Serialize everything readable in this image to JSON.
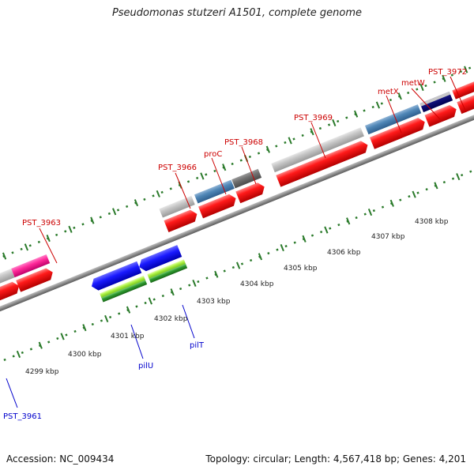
{
  "title": "Pseudomonas stutzeri A1501, complete genome",
  "footer": {
    "accession": "Accession: NC_009434",
    "summary": "Topology: circular; Length: 4,567,418 bp; Genes: 4,201"
  },
  "scale_labels": [
    "4299 kbp",
    "4300 kbp",
    "4301 kbp",
    "4302 kbp",
    "4303 kbp",
    "4304 kbp",
    "4305 kbp",
    "4306 kbp",
    "4307 kbp",
    "4308 kbp"
  ],
  "forward_gene_labels": [
    "PST_3963",
    "PST_3966",
    "proC",
    "PST_3968",
    "PST_3969",
    "metX",
    "metW",
    "PST_3972"
  ],
  "reverse_gene_labels": [
    "PST_3961",
    "pilU",
    "pilT"
  ],
  "colors": {
    "forward_label": "#cc0000",
    "reverse_label": "#0000cc",
    "tick": "#2a7a2a",
    "cds_red": "#ff0000",
    "backbone": "#8c8c8c"
  }
}
